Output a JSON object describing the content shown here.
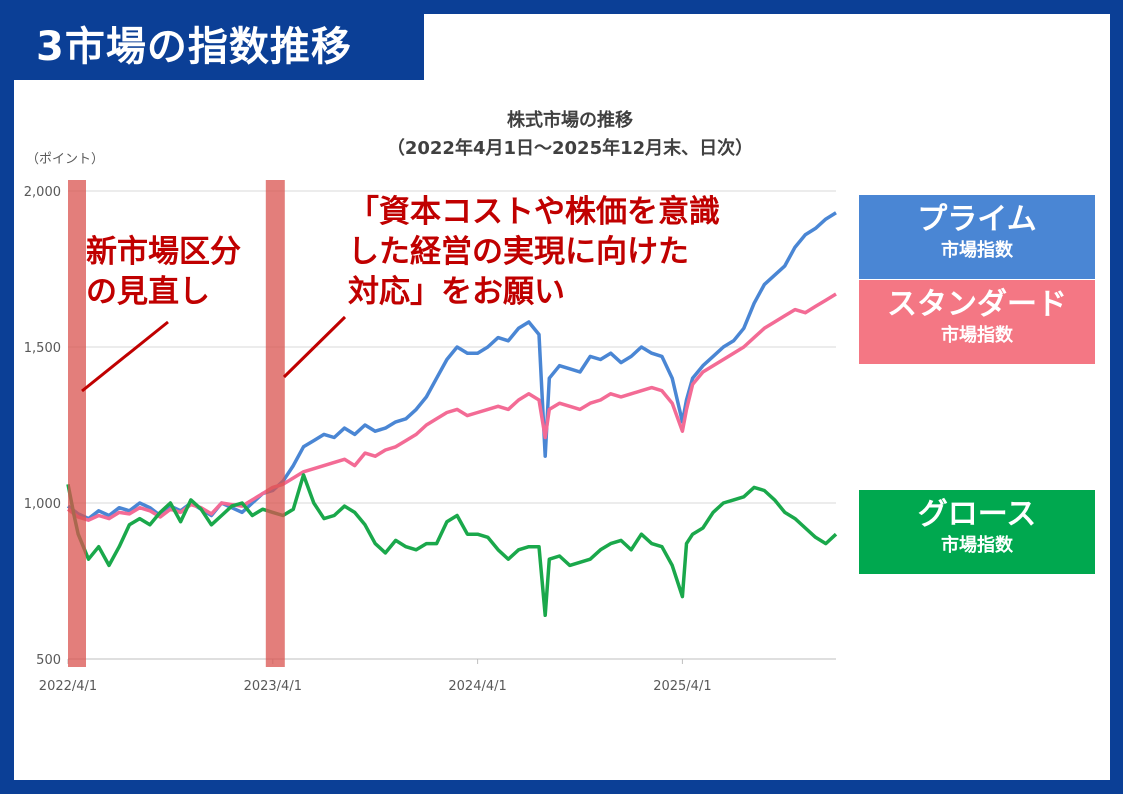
{
  "header": {
    "title": "3市場の指数推移"
  },
  "chart_data": {
    "type": "line",
    "title_line1": "株式市場の推移",
    "title_line2": "（2022年4月1日～2025年12月末、日次）",
    "ylabel": "（ポイント）",
    "ylim": [
      500,
      2000
    ],
    "yticks": [
      "2,000",
      "1,500",
      "1,000",
      "500"
    ],
    "ytick_values": [
      2000,
      1500,
      1000,
      500
    ],
    "xlabels": [
      "2022/4/1",
      "2023/4/1",
      "2024/4/1",
      "2025/4/1"
    ],
    "xtick_years": [
      2022.25,
      2023.25,
      2024.25,
      2025.25
    ],
    "xlim": [
      2022.25,
      2026.0
    ],
    "grid": "horizontal",
    "series": [
      {
        "name": "プライム",
        "color": "#4a86d4",
        "x": [
          2022.25,
          2022.3,
          2022.35,
          2022.4,
          2022.45,
          2022.5,
          2022.55,
          2022.6,
          2022.65,
          2022.7,
          2022.75,
          2022.8,
          2022.85,
          2022.9,
          2022.95,
          2023.0,
          2023.05,
          2023.1,
          2023.15,
          2023.2,
          2023.25,
          2023.3,
          2023.35,
          2023.4,
          2023.45,
          2023.5,
          2023.55,
          2023.6,
          2023.65,
          2023.7,
          2023.75,
          2023.8,
          2023.85,
          2023.9,
          2023.95,
          2024.0,
          2024.05,
          2024.1,
          2024.15,
          2024.2,
          2024.25,
          2024.3,
          2024.35,
          2024.4,
          2024.45,
          2024.5,
          2024.55,
          2024.58,
          2024.6,
          2024.65,
          2024.7,
          2024.75,
          2024.8,
          2024.85,
          2024.9,
          2024.95,
          2025.0,
          2025.05,
          2025.1,
          2025.15,
          2025.2,
          2025.25,
          2025.27,
          2025.3,
          2025.35,
          2025.4,
          2025.45,
          2025.5,
          2025.55,
          2025.6,
          2025.65,
          2025.7,
          2025.75,
          2025.8,
          2025.85,
          2025.9,
          2025.95,
          2026.0
        ],
        "values": [
          990,
          965,
          950,
          975,
          960,
          985,
          975,
          1000,
          985,
          960,
          990,
          975,
          1000,
          980,
          960,
          1000,
          985,
          970,
          1000,
          1030,
          1040,
          1070,
          1120,
          1180,
          1200,
          1220,
          1210,
          1240,
          1220,
          1250,
          1230,
          1240,
          1260,
          1270,
          1300,
          1340,
          1400,
          1460,
          1500,
          1480,
          1480,
          1500,
          1530,
          1520,
          1560,
          1580,
          1540,
          1150,
          1400,
          1440,
          1430,
          1420,
          1470,
          1460,
          1480,
          1450,
          1470,
          1500,
          1480,
          1470,
          1400,
          1260,
          1330,
          1400,
          1440,
          1470,
          1500,
          1520,
          1560,
          1640,
          1700,
          1730,
          1760,
          1820,
          1860,
          1880,
          1910,
          1930
        ]
      },
      {
        "name": "スタンダード",
        "color": "#f36b95",
        "x": [
          2022.25,
          2022.3,
          2022.35,
          2022.4,
          2022.45,
          2022.5,
          2022.55,
          2022.6,
          2022.65,
          2022.7,
          2022.75,
          2022.8,
          2022.85,
          2022.9,
          2022.95,
          2023.0,
          2023.05,
          2023.1,
          2023.15,
          2023.2,
          2023.25,
          2023.3,
          2023.35,
          2023.4,
          2023.45,
          2023.5,
          2023.55,
          2023.6,
          2023.65,
          2023.7,
          2023.75,
          2023.8,
          2023.85,
          2023.9,
          2023.95,
          2024.0,
          2024.05,
          2024.1,
          2024.15,
          2024.2,
          2024.25,
          2024.3,
          2024.35,
          2024.4,
          2024.45,
          2024.5,
          2024.55,
          2024.58,
          2024.6,
          2024.65,
          2024.7,
          2024.75,
          2024.8,
          2024.85,
          2024.9,
          2024.95,
          2025.0,
          2025.05,
          2025.1,
          2025.15,
          2025.2,
          2025.25,
          2025.27,
          2025.3,
          2025.35,
          2025.4,
          2025.45,
          2025.5,
          2025.55,
          2025.6,
          2025.65,
          2025.7,
          2025.75,
          2025.8,
          2025.85,
          2025.9,
          2025.95,
          2026.0
        ],
        "values": [
          980,
          955,
          945,
          960,
          950,
          970,
          965,
          985,
          975,
          955,
          980,
          970,
          995,
          985,
          965,
          1000,
          995,
          990,
          1010,
          1030,
          1050,
          1060,
          1080,
          1100,
          1110,
          1120,
          1130,
          1140,
          1120,
          1160,
          1150,
          1170,
          1180,
          1200,
          1220,
          1250,
          1270,
          1290,
          1300,
          1280,
          1290,
          1300,
          1310,
          1300,
          1330,
          1350,
          1330,
          1210,
          1300,
          1320,
          1310,
          1300,
          1320,
          1330,
          1350,
          1340,
          1350,
          1360,
          1370,
          1360,
          1320,
          1230,
          1300,
          1380,
          1420,
          1440,
          1460,
          1480,
          1500,
          1530,
          1560,
          1580,
          1600,
          1620,
          1610,
          1630,
          1650,
          1670
        ]
      },
      {
        "name": "グロース",
        "color": "#1aa84b",
        "x": [
          2022.25,
          2022.28,
          2022.3,
          2022.35,
          2022.4,
          2022.45,
          2022.5,
          2022.55,
          2022.6,
          2022.65,
          2022.7,
          2022.75,
          2022.8,
          2022.85,
          2022.9,
          2022.95,
          2023.0,
          2023.05,
          2023.1,
          2023.15,
          2023.2,
          2023.25,
          2023.3,
          2023.35,
          2023.4,
          2023.45,
          2023.5,
          2023.55,
          2023.6,
          2023.65,
          2023.7,
          2023.75,
          2023.8,
          2023.85,
          2023.9,
          2023.95,
          2024.0,
          2024.05,
          2024.1,
          2024.15,
          2024.2,
          2024.25,
          2024.3,
          2024.35,
          2024.4,
          2024.45,
          2024.5,
          2024.55,
          2024.58,
          2024.6,
          2024.65,
          2024.7,
          2024.75,
          2024.8,
          2024.85,
          2024.9,
          2024.95,
          2025.0,
          2025.05,
          2025.1,
          2025.15,
          2025.2,
          2025.25,
          2025.27,
          2025.3,
          2025.35,
          2025.4,
          2025.45,
          2025.5,
          2025.55,
          2025.6,
          2025.65,
          2025.7,
          2025.75,
          2025.8,
          2025.85,
          2025.9,
          2025.95,
          2026.0
        ],
        "values": [
          1060,
          960,
          900,
          820,
          860,
          800,
          860,
          930,
          950,
          930,
          970,
          1000,
          940,
          1010,
          980,
          930,
          960,
          990,
          1000,
          960,
          980,
          970,
          960,
          980,
          1090,
          1000,
          950,
          960,
          990,
          970,
          930,
          870,
          840,
          880,
          860,
          850,
          870,
          870,
          940,
          960,
          900,
          900,
          890,
          850,
          820,
          850,
          860,
          860,
          640,
          820,
          830,
          800,
          810,
          820,
          850,
          870,
          880,
          850,
          900,
          870,
          860,
          800,
          700,
          870,
          900,
          920,
          970,
          1000,
          1010,
          1020,
          1050,
          1040,
          1010,
          970,
          950,
          920,
          890,
          870,
          900
        ]
      }
    ]
  },
  "legend": [
    {
      "name": "プライム",
      "sub": "市場指数",
      "color": "#4a86d4"
    },
    {
      "name": "スタンダード",
      "sub": "市場指数",
      "color": "#f47784"
    },
    {
      "name": "グロース",
      "sub": "市場指数",
      "color": "#00a84f"
    }
  ],
  "annotations": {
    "a1_line1": "新市場区分",
    "a1_line2": "の見直し",
    "a2_line1": "「資本コストや株価を意識",
    "a2_line2": "した経営の実現に向けた",
    "a2_line3": "対応」をお願い",
    "color": "#c00000",
    "band_color": "#d9534f"
  }
}
